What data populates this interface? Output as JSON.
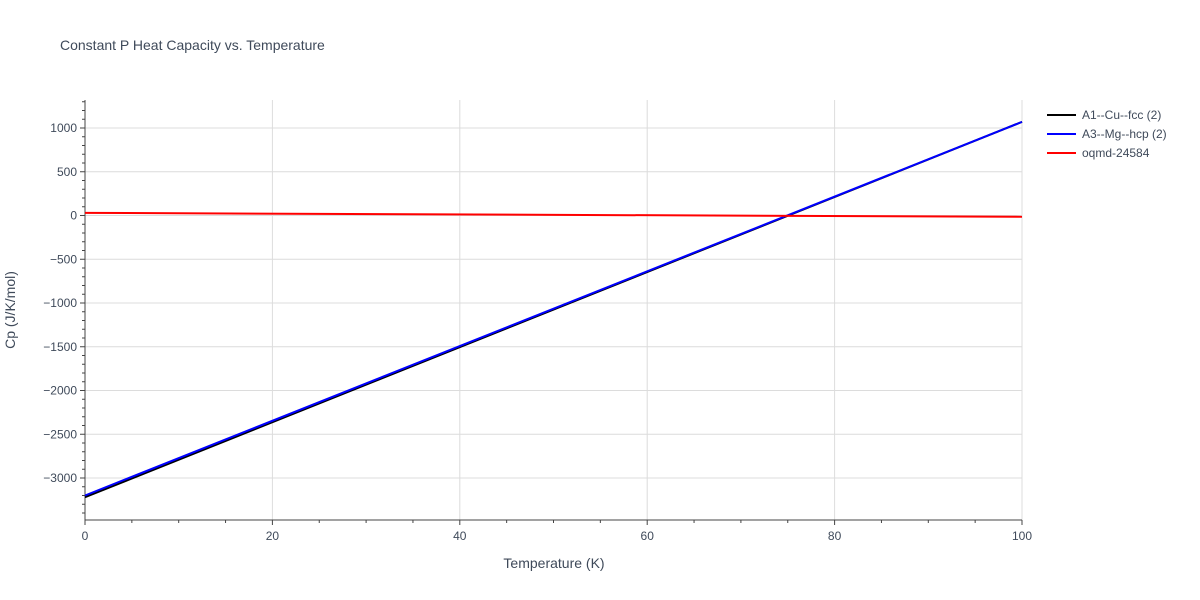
{
  "chart_data": {
    "type": "line",
    "title": "Constant P Heat Capacity vs. Temperature",
    "xlabel": "Temperature (K)",
    "ylabel": "Cp (J/K/mol)",
    "xlim": [
      0,
      100
    ],
    "ylim": [
      -3480,
      1320
    ],
    "x_ticks": [
      0,
      20,
      40,
      60,
      80,
      100
    ],
    "x_tick_labels": [
      "0",
      "20",
      "40",
      "60",
      "80",
      "100"
    ],
    "y_ticks": [
      1000,
      500,
      0,
      -500,
      -1000,
      -1500,
      -2000,
      -2500,
      -3000
    ],
    "y_tick_labels": [
      "1000",
      "500",
      "0",
      "−500",
      "−1000",
      "−1500",
      "−2000",
      "−2500",
      "−3000"
    ],
    "grid": true,
    "legend_position": "right",
    "series": [
      {
        "name": "A1--Cu--fcc (2)",
        "color": "#000000",
        "x": [
          0,
          100
        ],
        "y": [
          -3220,
          1070
        ]
      },
      {
        "name": "A3--Mg--hcp (2)",
        "color": "#0000ff",
        "x": [
          0,
          100
        ],
        "y": [
          -3200,
          1070
        ]
      },
      {
        "name": "oqmd-24584",
        "color": "#ff0000",
        "x": [
          0,
          100
        ],
        "y": [
          30,
          -15
        ]
      }
    ]
  }
}
